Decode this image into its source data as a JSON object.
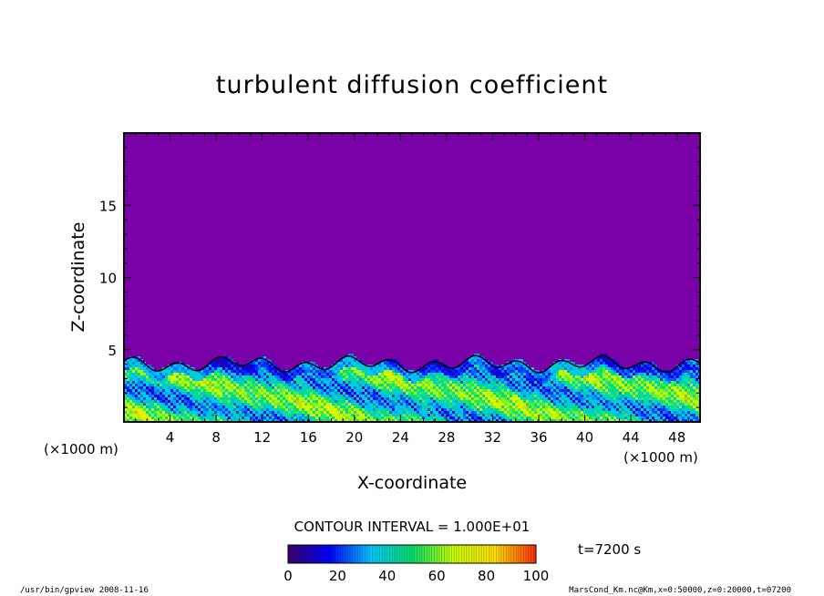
{
  "chart_data": {
    "type": "heatmap",
    "title": "turbulent diffusion coefficient",
    "xlabel": "X-coordinate",
    "ylabel": "Z-coordinate",
    "x_unit": "(×1000 m)",
    "y_unit": "(×1000 m)",
    "xlim": [
      0,
      50
    ],
    "ylim": [
      0,
      20
    ],
    "x_ticks": [
      4,
      8,
      12,
      16,
      20,
      24,
      28,
      32,
      36,
      40,
      44,
      48
    ],
    "y_ticks": [
      5,
      10,
      15
    ],
    "contour_interval_text": "CONTOUR INTERVAL = 1.000E+01",
    "colorbar": {
      "min": 0,
      "max": 100,
      "ticks": [
        0,
        20,
        40,
        60,
        80,
        100
      ],
      "colors": [
        "#3d0070",
        "#0000ff",
        "#00c8ff",
        "#00e070",
        "#c8ff00",
        "#ffe000",
        "#ff3000"
      ]
    },
    "background_value": 0,
    "background_color": "#7a00a8",
    "boundary_layer_top_km": 4,
    "time_text": "t=7200 s"
  },
  "footer": {
    "left": "/usr/bin/gpview   2008-11-16",
    "right": "MarsCond_Km.nc@Km,x=0:50000,z=0:20000,t=07200"
  }
}
